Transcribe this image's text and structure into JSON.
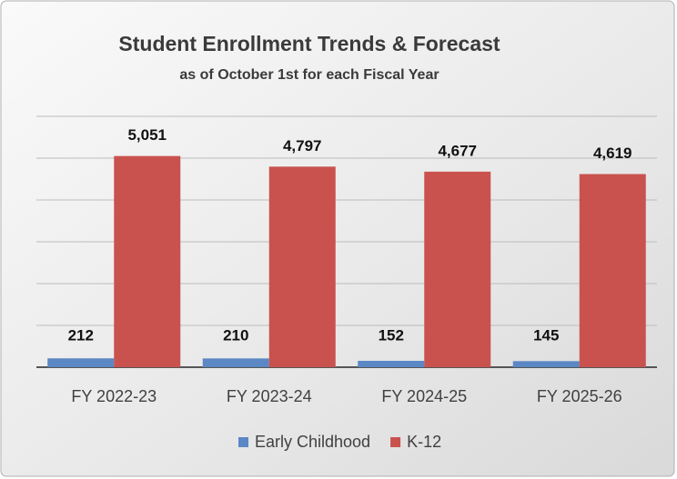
{
  "chart_data": {
    "type": "bar",
    "title": "Student Enrollment Trends & Forecast",
    "subtitle": "as of October 1st for each Fiscal  Year",
    "categories": [
      "FY 2022-23",
      "FY 2023-24",
      "FY 2024-25",
      "FY 2025-26"
    ],
    "series": [
      {
        "name": "Early Childhood",
        "color": "#5b87c5",
        "values": [
          212,
          210,
          152,
          145
        ],
        "value_labels": [
          "212",
          "210",
          "152",
          "145"
        ]
      },
      {
        "name": "K-12",
        "color": "#c9524e",
        "values": [
          5051,
          4797,
          4677,
          4619
        ],
        "value_labels": [
          "5,051",
          "4,797",
          "4,677",
          "4,619"
        ]
      }
    ],
    "ylim": [
      0,
      6000
    ],
    "yticks": [
      0,
      1000,
      2000,
      3000,
      4000,
      5000,
      6000
    ],
    "grid": true,
    "legend": "bottom"
  }
}
